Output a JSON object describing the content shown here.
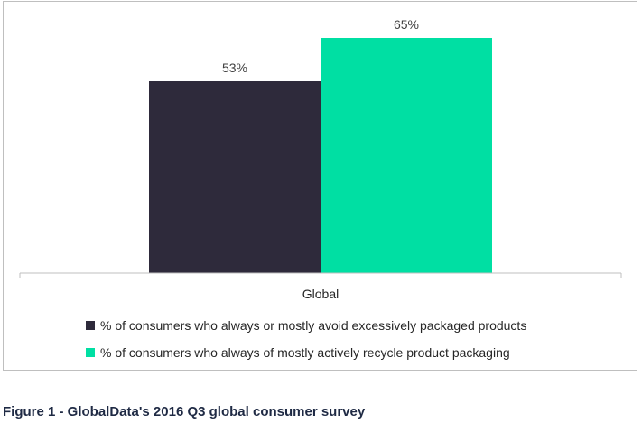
{
  "chart_data": {
    "type": "bar",
    "categories": [
      "Global"
    ],
    "series": [
      {
        "name": "% of consumers who always or mostly avoid excessively packaged products",
        "values": [
          53
        ],
        "color": "#2e2a3b",
        "label": "53%"
      },
      {
        "name": "% of consumers who always of mostly actively recycle product packaging",
        "values": [
          65
        ],
        "color": "#00dfa3",
        "label": "65%"
      }
    ],
    "title": "",
    "xlabel": "",
    "ylabel": "",
    "ylim": [
      0,
      75
    ],
    "grid": false,
    "legend": "bottom"
  },
  "caption": "Figure 1 - GlobalData's 2016 Q3 global consumer survey"
}
